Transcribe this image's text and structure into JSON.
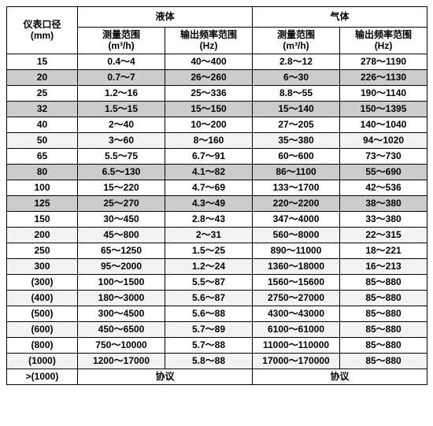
{
  "colors": {
    "border": "#000000",
    "bg_plain": "#ffffff",
    "bg_light": "#f2f2f2",
    "bg_dark": "#cccccc",
    "text": "#000000"
  },
  "header": {
    "diameter_label": "仪表口径",
    "diameter_unit": "(mm)",
    "liquid_group": "液体",
    "gas_group": "气体",
    "measure_label": "测量范围",
    "measure_unit": "(m³/h)",
    "freq_label": "输出频率范围",
    "freq_unit": "(Hz)"
  },
  "row_shades": {
    "plain": "#ffffff",
    "light": "#f2f2f2",
    "dark": "#cccccc"
  },
  "rows": [
    {
      "shade": "plain",
      "dia": "15",
      "liq_m": "0.4～4",
      "liq_f": "40～400",
      "gas_m": "2.8～12",
      "gas_f": "278～1190"
    },
    {
      "shade": "dark",
      "dia": "20",
      "liq_m": "0.7～7",
      "liq_f": "26～260",
      "gas_m": "6～30",
      "gas_f": "226～1130"
    },
    {
      "shade": "plain",
      "dia": "25",
      "liq_m": "1.2～16",
      "liq_f": "25～336",
      "gas_m": "8.8～55",
      "gas_f": "190～1140"
    },
    {
      "shade": "dark",
      "dia": "32",
      "liq_m": "1.5～15",
      "liq_f": "15～150",
      "gas_m": "15～140",
      "gas_f": "150～1395"
    },
    {
      "shade": "plain",
      "dia": "40",
      "liq_m": "2～40",
      "liq_f": "10～200",
      "gas_m": "27～205",
      "gas_f": "140～1040"
    },
    {
      "shade": "light",
      "dia": "50",
      "liq_m": "3～60",
      "liq_f": "8～160",
      "gas_m": "35～380",
      "gas_f": "94～1020"
    },
    {
      "shade": "plain",
      "dia": "65",
      "liq_m": "5.5～75",
      "liq_f": "6.7～91",
      "gas_m": "60～600",
      "gas_f": "73～730"
    },
    {
      "shade": "dark",
      "dia": "80",
      "liq_m": "6.5～130",
      "liq_f": "4.1～82",
      "gas_m": "86～1100",
      "gas_f": "55～690"
    },
    {
      "shade": "plain",
      "dia": "100",
      "liq_m": "15～220",
      "liq_f": "4.7～69",
      "gas_m": "133～1700",
      "gas_f": "42～536"
    },
    {
      "shade": "dark",
      "dia": "125",
      "liq_m": "25～270",
      "liq_f": "4.3～49",
      "gas_m": "220～2200",
      "gas_f": "38～380"
    },
    {
      "shade": "plain",
      "dia": "150",
      "liq_m": "30～450",
      "liq_f": "2.8～43",
      "gas_m": "347～4000",
      "gas_f": "33～380"
    },
    {
      "shade": "light",
      "dia": "200",
      "liq_m": "45～800",
      "liq_f": "2～31",
      "gas_m": "560～8000",
      "gas_f": "22～315"
    },
    {
      "shade": "plain",
      "dia": "250",
      "liq_m": "65～1250",
      "liq_f": "1.5～25",
      "gas_m": "890～11000",
      "gas_f": "18～221"
    },
    {
      "shade": "light",
      "dia": "300",
      "liq_m": "95～2000",
      "liq_f": "1.2～24",
      "gas_m": "1360～18000",
      "gas_f": "16～213"
    },
    {
      "shade": "plain",
      "dia": "(300)",
      "liq_m": "100～1500",
      "liq_f": "5.5～87",
      "gas_m": "1560～15600",
      "gas_f": "85～880"
    },
    {
      "shade": "light",
      "dia": "(400)",
      "liq_m": "180～3000",
      "liq_f": "5.6～87",
      "gas_m": "2750～27000",
      "gas_f": "85～880"
    },
    {
      "shade": "plain",
      "dia": "(500)",
      "liq_m": "300～4500",
      "liq_f": "5.6～88",
      "gas_m": "4300～43000",
      "gas_f": "85～880"
    },
    {
      "shade": "light",
      "dia": "(600)",
      "liq_m": "450～6500",
      "liq_f": "5.7～89",
      "gas_m": "6100～61000",
      "gas_f": "85～880"
    },
    {
      "shade": "plain",
      "dia": "(800)",
      "liq_m": "750～10000",
      "liq_f": "5.7～88",
      "gas_m": "11000～110000",
      "gas_f": "85～880"
    },
    {
      "shade": "light",
      "dia": "(1000)",
      "liq_m": "1200～17000",
      "liq_f": "5.8～88",
      "gas_m": "17000～170000",
      "gas_f": "85～880"
    }
  ],
  "footer": {
    "dia": ">(1000)",
    "liq": "协议",
    "gas": "协议"
  }
}
